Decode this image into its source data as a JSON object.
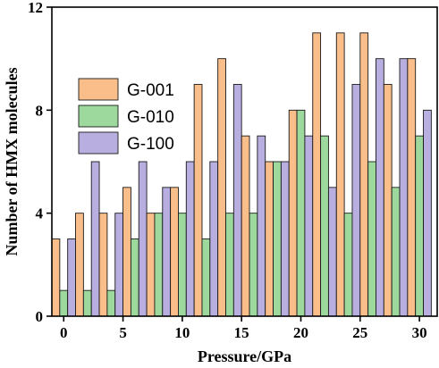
{
  "chart_data": {
    "type": "bar",
    "title": "",
    "xlabel": "Pressure/GPa",
    "ylabel": "Number of HMX molecules",
    "xlim": [
      -1,
      31.5
    ],
    "ylim": [
      0,
      12
    ],
    "x_ticks": [
      0,
      5,
      10,
      15,
      20,
      25,
      30
    ],
    "y_ticks": [
      0,
      4,
      8,
      12
    ],
    "grid": false,
    "legend_position": "center-left",
    "categories": [
      0,
      2,
      4,
      6,
      8,
      10,
      12,
      14,
      16,
      18,
      20,
      22,
      24,
      26,
      28,
      30
    ],
    "series": [
      {
        "name": "G-001",
        "color": "#f9be8a",
        "values": [
          3,
          4,
          4,
          5,
          4,
          5,
          9,
          10,
          7,
          6,
          8,
          11,
          11,
          11,
          9,
          10
        ]
      },
      {
        "name": "G-010",
        "color": "#9dd99c",
        "values": [
          1,
          1,
          1,
          3,
          4,
          4,
          3,
          4,
          4,
          6,
          8,
          7,
          4,
          6,
          5,
          7
        ]
      },
      {
        "name": "G-100",
        "color": "#b9aee0",
        "values": [
          3,
          6,
          4,
          6,
          5,
          6,
          6,
          9,
          7,
          6,
          7,
          5,
          9,
          10,
          10,
          8
        ]
      }
    ]
  }
}
